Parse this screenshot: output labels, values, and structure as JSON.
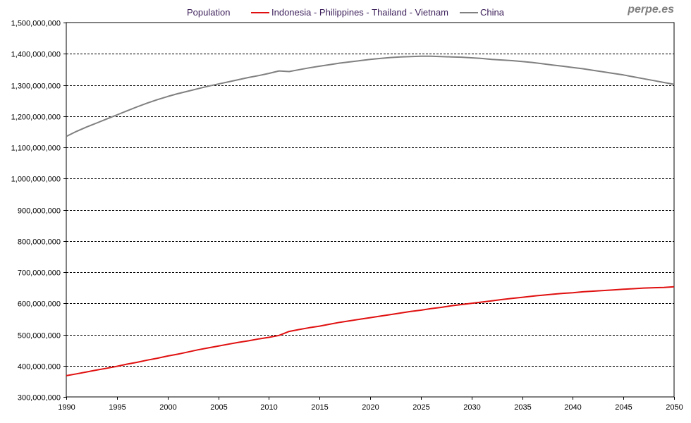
{
  "brand": "perpe.es",
  "legend_title": "Population",
  "colors": {
    "series1": "#e01010",
    "series2": "#808080",
    "grid": "#000000",
    "text": "#3c1f5a"
  },
  "chart_data": {
    "type": "line",
    "title": "",
    "xlabel": "",
    "ylabel": "",
    "xlim": [
      1990,
      2050
    ],
    "ylim": [
      300000000,
      1500000000
    ],
    "grid": true,
    "legend_position": "top",
    "x_ticks": [
      "1990",
      "1995",
      "2000",
      "2005",
      "2010",
      "2015",
      "2020",
      "2025",
      "2030",
      "2035",
      "2040",
      "2045",
      "2050"
    ],
    "y_ticks": [
      "300,000,000",
      "400,000,000",
      "500,000,000",
      "600,000,000",
      "700,000,000",
      "800,000,000",
      "900,000,000",
      "1,000,000,000",
      "1,100,000,000",
      "1,200,000,000",
      "1,300,000,000",
      "1,400,000,000",
      "1,500,000,000"
    ],
    "x": [
      1990,
      1991,
      1992,
      1993,
      1994,
      1995,
      1996,
      1997,
      1998,
      1999,
      2000,
      2001,
      2002,
      2003,
      2004,
      2005,
      2006,
      2007,
      2008,
      2009,
      2010,
      2011,
      2012,
      2013,
      2014,
      2015,
      2016,
      2017,
      2018,
      2019,
      2020,
      2021,
      2022,
      2023,
      2024,
      2025,
      2026,
      2027,
      2028,
      2029,
      2030,
      2031,
      2032,
      2033,
      2034,
      2035,
      2036,
      2037,
      2038,
      2039,
      2040,
      2041,
      2042,
      2043,
      2044,
      2045,
      2046,
      2047,
      2048,
      2049,
      2050
    ],
    "series": [
      {
        "name": "Indonesia - Philippines - Thailand - Vietnam",
        "values": [
          368000000,
          374000000,
          380000000,
          386000000,
          392000000,
          398000000,
          405000000,
          411000000,
          418000000,
          424000000,
          431000000,
          437000000,
          444000000,
          451000000,
          457000000,
          463000000,
          469000000,
          475000000,
          480000000,
          486000000,
          491000000,
          497000000,
          510000000,
          516000000,
          522000000,
          527000000,
          533000000,
          539000000,
          544000000,
          549000000,
          554000000,
          559000000,
          564000000,
          569000000,
          574000000,
          578000000,
          583000000,
          587000000,
          592000000,
          596000000,
          600000000,
          604000000,
          608000000,
          612000000,
          616000000,
          619000000,
          623000000,
          626000000,
          629000000,
          632000000,
          634000000,
          637000000,
          639000000,
          641000000,
          643000000,
          645000000,
          647000000,
          649000000,
          650000000,
          651000000,
          653000000
        ]
      },
      {
        "name": "China",
        "values": [
          1135000000,
          1151000000,
          1165000000,
          1178000000,
          1191000000,
          1204000000,
          1217000000,
          1230000000,
          1242000000,
          1253000000,
          1263000000,
          1272000000,
          1280000000,
          1288000000,
          1296000000,
          1303000000,
          1310000000,
          1317000000,
          1324000000,
          1330000000,
          1337000000,
          1345000000,
          1343000000,
          1349000000,
          1355000000,
          1360000000,
          1365000000,
          1370000000,
          1374000000,
          1378000000,
          1382000000,
          1385000000,
          1388000000,
          1390000000,
          1391000000,
          1392000000,
          1392000000,
          1391000000,
          1390000000,
          1389000000,
          1387000000,
          1385000000,
          1382000000,
          1380000000,
          1378000000,
          1375000000,
          1372000000,
          1368000000,
          1364000000,
          1360000000,
          1356000000,
          1352000000,
          1347000000,
          1342000000,
          1337000000,
          1332000000,
          1326000000,
          1320000000,
          1314000000,
          1308000000,
          1302000000
        ]
      }
    ]
  }
}
